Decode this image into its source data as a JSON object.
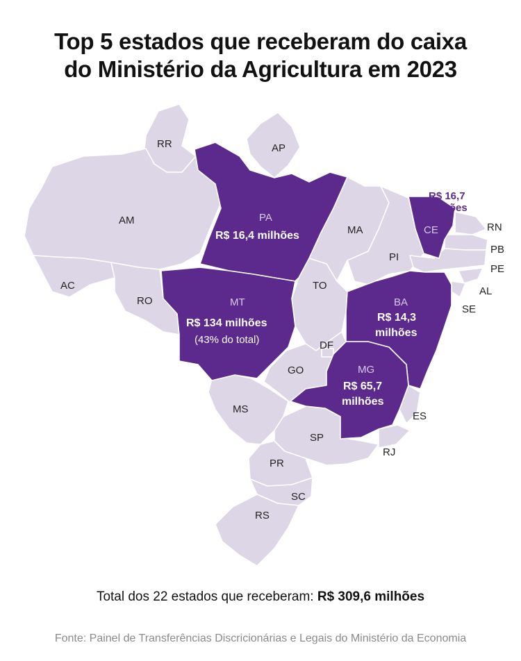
{
  "title": {
    "line1": "Top 5 estados que receberam do caixa",
    "line2": "do Ministério da Agricultura em 2023"
  },
  "highlight_color": "#5b2a8c",
  "base_color": "#dcd6e6",
  "states": [
    {
      "code": "RR",
      "highlighted": false
    },
    {
      "code": "AP",
      "highlighted": false
    },
    {
      "code": "AM",
      "highlighted": false
    },
    {
      "code": "PA",
      "highlighted": true,
      "value": "R$ 16,4 milhões"
    },
    {
      "code": "MA",
      "highlighted": false
    },
    {
      "code": "CE",
      "highlighted": true,
      "value_line1": "R$ 16,7",
      "value_line2": "milhões"
    },
    {
      "code": "RN",
      "highlighted": false
    },
    {
      "code": "PB",
      "highlighted": false
    },
    {
      "code": "PE",
      "highlighted": false
    },
    {
      "code": "AL",
      "highlighted": false
    },
    {
      "code": "SE",
      "highlighted": false
    },
    {
      "code": "PI",
      "highlighted": false
    },
    {
      "code": "AC",
      "highlighted": false
    },
    {
      "code": "RO",
      "highlighted": false
    },
    {
      "code": "TO",
      "highlighted": false
    },
    {
      "code": "MT",
      "highlighted": true,
      "value": "R$ 134 milhões",
      "note": "(43% do total)"
    },
    {
      "code": "BA",
      "highlighted": true,
      "value_line1": "R$ 14,3",
      "value_line2": "milhões"
    },
    {
      "code": "DF",
      "highlighted": false
    },
    {
      "code": "GO",
      "highlighted": false
    },
    {
      "code": "MG",
      "highlighted": true,
      "value_line1": "R$ 65,7",
      "value_line2": "milhões"
    },
    {
      "code": "MS",
      "highlighted": false
    },
    {
      "code": "ES",
      "highlighted": false
    },
    {
      "code": "SP",
      "highlighted": false
    },
    {
      "code": "RJ",
      "highlighted": false
    },
    {
      "code": "PR",
      "highlighted": false
    },
    {
      "code": "SC",
      "highlighted": false
    },
    {
      "code": "RS",
      "highlighted": false
    }
  ],
  "footer": {
    "total_label": "Total dos 22 estados que receberam:",
    "total_value": "R$ 309,6 milhões",
    "source": "Fonte: Painel de Transferências Discricionárias e Legais do Ministério da Economia"
  }
}
